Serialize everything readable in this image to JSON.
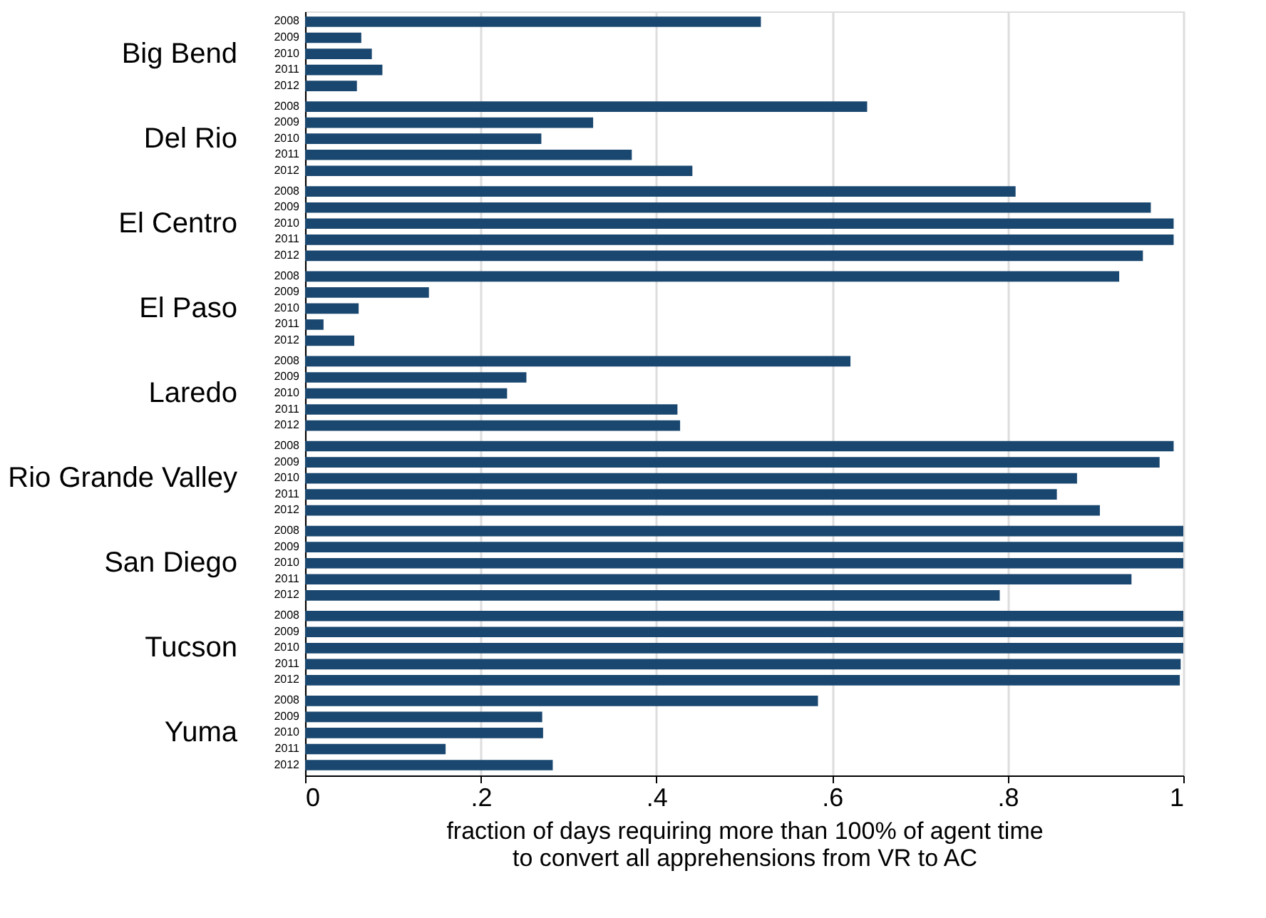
{
  "chart_data": {
    "type": "bar",
    "orientation": "horizontal",
    "categories": [
      "Big Bend",
      "Del Rio",
      "El Centro",
      "El Paso",
      "Laredo",
      "Rio Grande Valley",
      "San Diego",
      "Tucson",
      "Yuma"
    ],
    "series": [
      {
        "name": "2008",
        "color": "#1a476f",
        "values": [
          0.519,
          0.64,
          0.809,
          0.927,
          0.621,
          0.989,
          1.0,
          1.0,
          0.584
        ]
      },
      {
        "name": "2009",
        "color": "#1a476f",
        "values": [
          0.064,
          0.328,
          0.963,
          0.141,
          0.252,
          0.973,
          1.0,
          1.0,
          0.27
        ]
      },
      {
        "name": "2010",
        "color": "#1a476f",
        "values": [
          0.076,
          0.269,
          0.989,
          0.061,
          0.23,
          0.879,
          1.0,
          1.0,
          0.271
        ]
      },
      {
        "name": "2011",
        "color": "#1a476f",
        "values": [
          0.088,
          0.372,
          0.989,
          0.021,
          0.424,
          0.856,
          0.941,
          0.997,
          0.16
        ]
      },
      {
        "name": "2012",
        "color": "#1a476f",
        "values": [
          0.059,
          0.441,
          0.954,
          0.056,
          0.427,
          0.905,
          0.791,
          0.996,
          0.282
        ]
      }
    ],
    "xlabel": "fraction of days requiring more than 100% of agent time\nto convert all apprehensions from VR to AC",
    "xlim": [
      0,
      1
    ],
    "xticks": [
      0,
      {
        "value": 0.2,
        "label": ".2"
      },
      {
        "value": 0.4,
        "label": ".4"
      },
      {
        "value": 0.6,
        "label": ".6"
      },
      {
        "value": 0.8,
        "label": ".8"
      },
      1
    ],
    "grid": "x",
    "legend": false
  }
}
